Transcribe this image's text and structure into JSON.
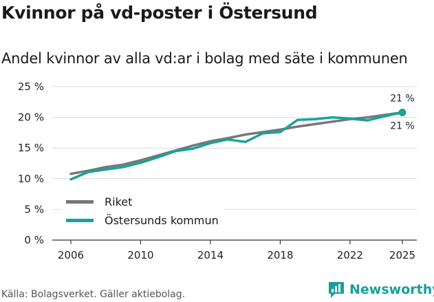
{
  "title": "Kvinnor på vd-poster i Östersund",
  "subtitle": "Andel kvinnor av alla vd:ar i bolag med säte i kommunen",
  "source": "Källa: Bolagsverket. Gäller aktiebolag.",
  "brand": "Newsworthy",
  "colors": {
    "riket": "#767676",
    "ostersund": "#16a49a",
    "grid": "#d9d9d9",
    "axis": "#333333"
  },
  "chart_data": {
    "type": "line",
    "x": [
      2006,
      2007,
      2008,
      2009,
      2010,
      2011,
      2012,
      2013,
      2014,
      2015,
      2016,
      2017,
      2018,
      2019,
      2020,
      2021,
      2022,
      2023,
      2024,
      2025
    ],
    "series": [
      {
        "name": "Riket",
        "values": [
          10.8,
          11.3,
          11.9,
          12.3,
          13.0,
          13.8,
          14.6,
          15.4,
          16.1,
          16.6,
          17.2,
          17.6,
          18.0,
          18.5,
          18.9,
          19.3,
          19.7,
          20.0,
          20.4,
          20.8
        ]
      },
      {
        "name": "Östersunds kommun",
        "values": [
          9.9,
          11.1,
          11.5,
          11.9,
          12.6,
          13.5,
          14.5,
          14.9,
          15.8,
          16.4,
          16.0,
          17.4,
          17.6,
          19.6,
          19.7,
          20.0,
          19.8,
          19.5,
          20.2,
          20.8
        ]
      }
    ],
    "xticks": [
      "2006",
      "2010",
      "2014",
      "2018",
      "2022",
      "2025"
    ],
    "yticks": [
      "0 %",
      "5 %",
      "10 %",
      "15 %",
      "20 %",
      "25 %"
    ],
    "ylim": [
      0,
      25
    ],
    "xlim": [
      2006,
      2025
    ],
    "annotations": [
      {
        "series": "Riket",
        "x": 2025,
        "text": "21 %",
        "position": "above"
      },
      {
        "series": "Östersunds kommun",
        "x": 2025,
        "text": "21 %",
        "position": "below"
      }
    ],
    "legend": [
      "Riket",
      "Östersunds kommun"
    ],
    "legend_position": "bottom-left",
    "grid": true
  }
}
